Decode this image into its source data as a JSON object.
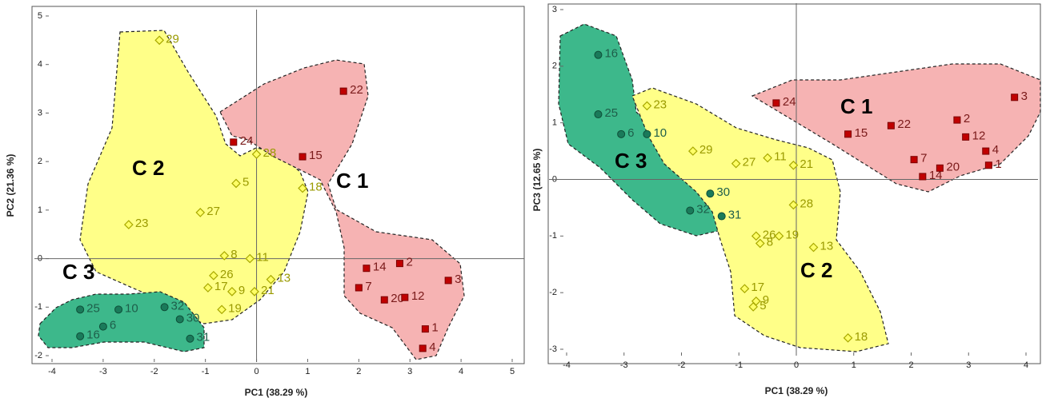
{
  "chart_data": [
    {
      "type": "scatter",
      "xlabel": "PC1 (38.29 %)",
      "ylabel": "PC2 (21.36 %)",
      "xlim": [
        -4,
        5
      ],
      "xticks": [
        -4,
        -3,
        -2,
        -1,
        0,
        1,
        2,
        3,
        4,
        5
      ],
      "ylim": [
        -2,
        5
      ],
      "yticks": [
        -2,
        -1,
        0,
        1,
        2,
        3,
        4,
        5
      ],
      "series": [
        {
          "name": "C 1",
          "color": "#c00000",
          "marker": "square",
          "labels": [
            "22",
            "15",
            "24",
            "14",
            "7",
            "2",
            "20",
            "12",
            "3",
            "1",
            "4"
          ],
          "x": [
            1.7,
            0.9,
            -0.45,
            2.15,
            2.0,
            2.8,
            2.5,
            2.9,
            3.75,
            3.3,
            3.25
          ],
          "values": [
            3.45,
            2.1,
            2.4,
            -0.2,
            -0.6,
            -0.1,
            -0.85,
            -0.8,
            -0.45,
            -1.45,
            -1.85
          ]
        },
        {
          "name": "C 2",
          "color": "#ffff66",
          "marker": "diamond",
          "labels": [
            "29",
            "28",
            "5",
            "18",
            "27",
            "23",
            "8",
            "11",
            "26",
            "13",
            "17",
            "9",
            "21",
            "19"
          ],
          "x": [
            -1.9,
            0,
            -0.4,
            0.9,
            -1.1,
            -2.5,
            -0.63,
            -0.13,
            -0.84,
            0.28,
            -0.95,
            -0.48,
            -0.04,
            -0.68
          ],
          "values": [
            4.5,
            2.15,
            1.55,
            1.45,
            0.95,
            0.7,
            0.06,
            0.0,
            -0.35,
            -0.43,
            -0.6,
            -0.68,
            -0.68,
            -1.05
          ]
        },
        {
          "name": "C 3",
          "color": "#1a7a5a",
          "marker": "circle",
          "labels": [
            "25",
            "10",
            "6",
            "16",
            "32",
            "30",
            "31"
          ],
          "x": [
            -3.45,
            -2.7,
            -3.0,
            -3.45,
            -1.8,
            -1.5,
            -1.3
          ],
          "values": [
            -1.05,
            -1.05,
            -1.4,
            -1.6,
            -1.0,
            -1.25,
            -1.65
          ]
        }
      ]
    },
    {
      "type": "scatter",
      "xlabel": "PC1 (38.29 %)",
      "ylabel": "PC3 (12.65 %)",
      "xlim": [
        -4,
        4
      ],
      "xticks": [
        -4,
        -3,
        -2,
        -1,
        0,
        1,
        2,
        3,
        4
      ],
      "ylim": [
        -3,
        3
      ],
      "yticks": [
        -3,
        -2,
        -1,
        0,
        1,
        2,
        3
      ],
      "series": [
        {
          "name": "C 1",
          "color": "#c00000",
          "marker": "square",
          "labels": [
            "24",
            "15",
            "22",
            "2",
            "3",
            "12",
            "4",
            "1",
            "7",
            "14",
            "20"
          ],
          "x": [
            -0.35,
            0.9,
            1.65,
            2.8,
            3.8,
            2.95,
            3.3,
            3.35,
            2.05,
            2.2,
            2.5
          ],
          "values": [
            1.35,
            0.8,
            0.95,
            1.05,
            1.45,
            0.75,
            0.5,
            0.25,
            0.35,
            0.05,
            0.2
          ]
        },
        {
          "name": "C 2",
          "color": "#ffff66",
          "marker": "diamond",
          "labels": [
            "23",
            "29",
            "27",
            "11",
            "21",
            "28",
            "26",
            "19",
            "8",
            "13",
            "17",
            "5",
            "9",
            "18"
          ],
          "x": [
            -2.6,
            -1.8,
            -1.05,
            -0.5,
            -0.05,
            -0.05,
            -0.7,
            -0.3,
            -0.63,
            0.3,
            -0.9,
            -0.75,
            -0.7,
            0.9
          ],
          "values": [
            1.3,
            0.5,
            0.28,
            0.38,
            0.25,
            -0.45,
            -1.0,
            -1.0,
            -1.13,
            -1.2,
            -1.93,
            -2.25,
            -2.15,
            -2.8
          ]
        },
        {
          "name": "C 3",
          "color": "#1a7a5a",
          "marker": "circle",
          "labels": [
            "16",
            "25",
            "6",
            "10",
            "30",
            "32",
            "31"
          ],
          "x": [
            -3.45,
            -3.45,
            -3.05,
            -2.6,
            -1.5,
            -1.85,
            -1.3
          ],
          "values": [
            2.2,
            1.15,
            0.8,
            0.8,
            -0.25,
            -0.55,
            -0.65
          ]
        }
      ]
    }
  ]
}
